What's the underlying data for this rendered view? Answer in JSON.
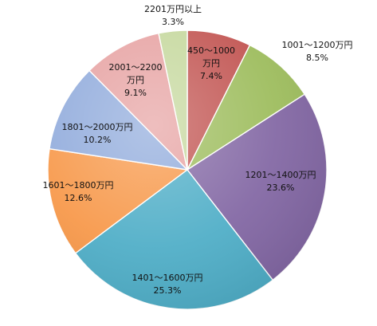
{
  "chart_data": {
    "type": "pie",
    "title": "",
    "slices": [
      {
        "label": "450～1000万円",
        "label_lines": [
          "450～1000",
          "万円"
        ],
        "value": 7.4,
        "value_label": "7.4%",
        "color": "#C0504D"
      },
      {
        "label": "1001～1200万円",
        "label_lines": [
          "1001～1200万円"
        ],
        "value": 8.5,
        "value_label": "8.5%",
        "color": "#9BBB59"
      },
      {
        "label": "1201～1400万円",
        "label_lines": [
          "1201～1400万円"
        ],
        "value": 23.6,
        "value_label": "23.6%",
        "color": "#8064A2"
      },
      {
        "label": "1401～1600万円",
        "label_lines": [
          "1401～1600万円"
        ],
        "value": 25.3,
        "value_label": "25.3%",
        "color": "#4BACC6"
      },
      {
        "label": "1601～1800万円",
        "label_lines": [
          "1601～1800万円"
        ],
        "value": 12.6,
        "value_label": "12.6%",
        "color": "#F79646"
      },
      {
        "label": "1801～2000万円",
        "label_lines": [
          "1801～2000万円"
        ],
        "value": 10.2,
        "value_label": "10.2%",
        "color": "#8EA9DB"
      },
      {
        "label": "2001～2200万円",
        "label_lines": [
          "2001～2200",
          "万円"
        ],
        "value": 9.1,
        "value_label": "9.1%",
        "color": "#E6A0A0"
      },
      {
        "label": "2201万円以上",
        "label_lines": [
          "2201万円以上"
        ],
        "value": 3.3,
        "value_label": "3.3%",
        "color": "#C4D79B"
      }
    ],
    "start_angle_deg": 0,
    "direction": "clockwise",
    "legend": "none",
    "label_placement": "inside-and-outside"
  }
}
